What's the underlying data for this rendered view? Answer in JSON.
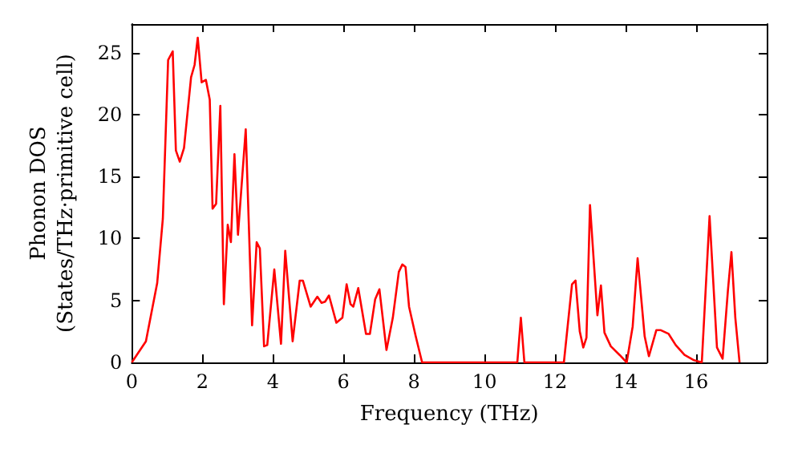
{
  "chart_data": {
    "type": "line",
    "xlabel": "Frequency (THz)",
    "ylabel": "Phonon DOS\n(States/THz·primitive cell)",
    "series": [
      {
        "color": "#ff0000",
        "x": [
          0.0,
          0.4,
          0.72,
          0.88,
          1.03,
          1.16,
          1.25,
          1.36,
          1.48,
          1.68,
          1.78,
          1.87,
          1.98,
          2.1,
          2.21,
          2.29,
          2.39,
          2.51,
          2.61,
          2.72,
          2.81,
          2.91,
          3.01,
          3.23,
          3.41,
          3.54,
          3.63,
          3.75,
          3.84,
          4.04,
          4.23,
          4.35,
          4.56,
          4.76,
          4.85,
          5.07,
          5.26,
          5.38,
          5.48,
          5.59,
          5.8,
          5.97,
          6.09,
          6.2,
          6.28,
          6.42,
          6.64,
          6.75,
          6.9,
          7.02,
          7.22,
          7.4,
          7.57,
          7.67,
          7.76,
          7.86,
          8.05,
          8.23,
          10.93,
          11.03,
          11.13,
          12.06,
          12.25,
          12.48,
          12.58,
          12.7,
          12.8,
          12.89,
          12.99,
          13.2,
          13.3,
          13.4,
          13.58,
          13.83,
          14.03,
          14.2,
          14.34,
          14.54,
          14.66,
          14.87,
          15.0,
          15.22,
          15.42,
          15.67,
          15.92,
          16.16,
          16.38,
          16.59,
          16.75,
          16.9,
          17.0,
          17.11,
          17.23
        ],
        "values": [
          0,
          1.7,
          6.4,
          11.6,
          24.4,
          25.1,
          17.1,
          16.2,
          17.3,
          23,
          24,
          26.2,
          22.6,
          22.8,
          21.2,
          12.4,
          12.8,
          20.7,
          4.7,
          11.1,
          9.7,
          16.8,
          10.3,
          18.8,
          3,
          9.7,
          9.2,
          1.3,
          1.4,
          7.5,
          1.5,
          9,
          1.7,
          6.6,
          6.6,
          4.5,
          5.3,
          4.8,
          4.9,
          5.4,
          3.2,
          3.6,
          6.3,
          4.7,
          4.5,
          6,
          2.3,
          2.3,
          5.1,
          5.9,
          1,
          3.6,
          7.3,
          7.9,
          7.7,
          4.5,
          2.1,
          0,
          0,
          3.6,
          0,
          0,
          0,
          6.3,
          6.6,
          2.5,
          1.2,
          2,
          12.7,
          3.8,
          6.2,
          2.4,
          1.3,
          0.6,
          0,
          2.9,
          8.4,
          2.1,
          0.5,
          2.6,
          2.6,
          2.3,
          1.4,
          0.6,
          0.2,
          0,
          11.8,
          1.2,
          0.3,
          5.8,
          8.9,
          3.6,
          0
        ]
      }
    ],
    "xlim": [
      0,
      18
    ],
    "xticks": [
      0,
      2,
      4,
      6,
      8,
      10,
      12,
      14,
      16
    ],
    "ylim": [
      0,
      27.3
    ],
    "yticks": [
      0,
      5,
      10,
      15,
      20,
      25
    ],
    "grid": false,
    "marker": "none",
    "line_style": "solid"
  }
}
